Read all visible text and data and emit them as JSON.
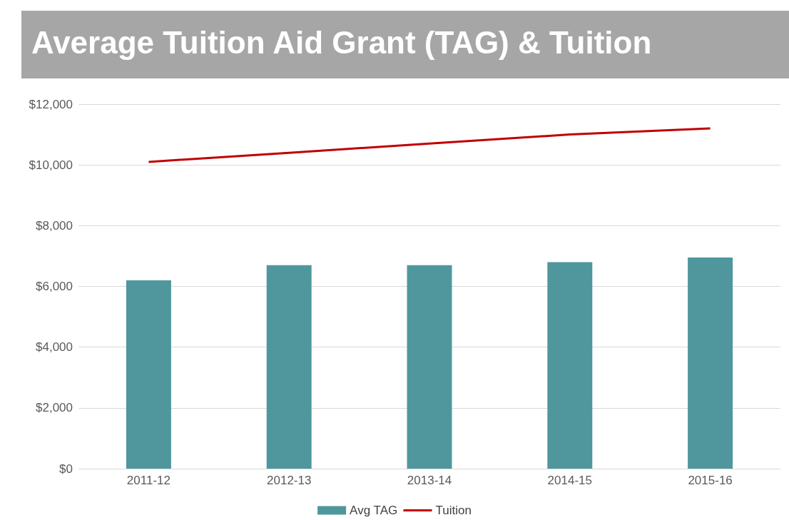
{
  "chart_data": {
    "type": "bar",
    "title": "Average Tuition Aid Grant (TAG) & Tuition",
    "categories": [
      "2011-12",
      "2012-13",
      "2013-14",
      "2014-15",
      "2015-16"
    ],
    "series": [
      {
        "name": "Avg TAG",
        "color": "#4f979d",
        "values": [
          6200,
          6700,
          6700,
          6800,
          6950
        ]
      },
      {
        "name": "Tuition",
        "type": "line",
        "color": "#c00000",
        "values": [
          10100,
          10400,
          10700,
          11000,
          11200
        ]
      }
    ],
    "ylim": [
      0,
      12000
    ],
    "yticks": [
      {
        "value": 0,
        "label": "$0"
      },
      {
        "value": 2000,
        "label": "$2,000"
      },
      {
        "value": 4000,
        "label": "$4,000"
      },
      {
        "value": 6000,
        "label": "$6,000"
      },
      {
        "value": 8000,
        "label": "$8,000"
      },
      {
        "value": 10000,
        "label": "$10,000"
      },
      {
        "value": 12000,
        "label": "$12,000"
      }
    ],
    "grid": "y",
    "legend": "bottom",
    "marker": "none",
    "line_style": "solid"
  }
}
